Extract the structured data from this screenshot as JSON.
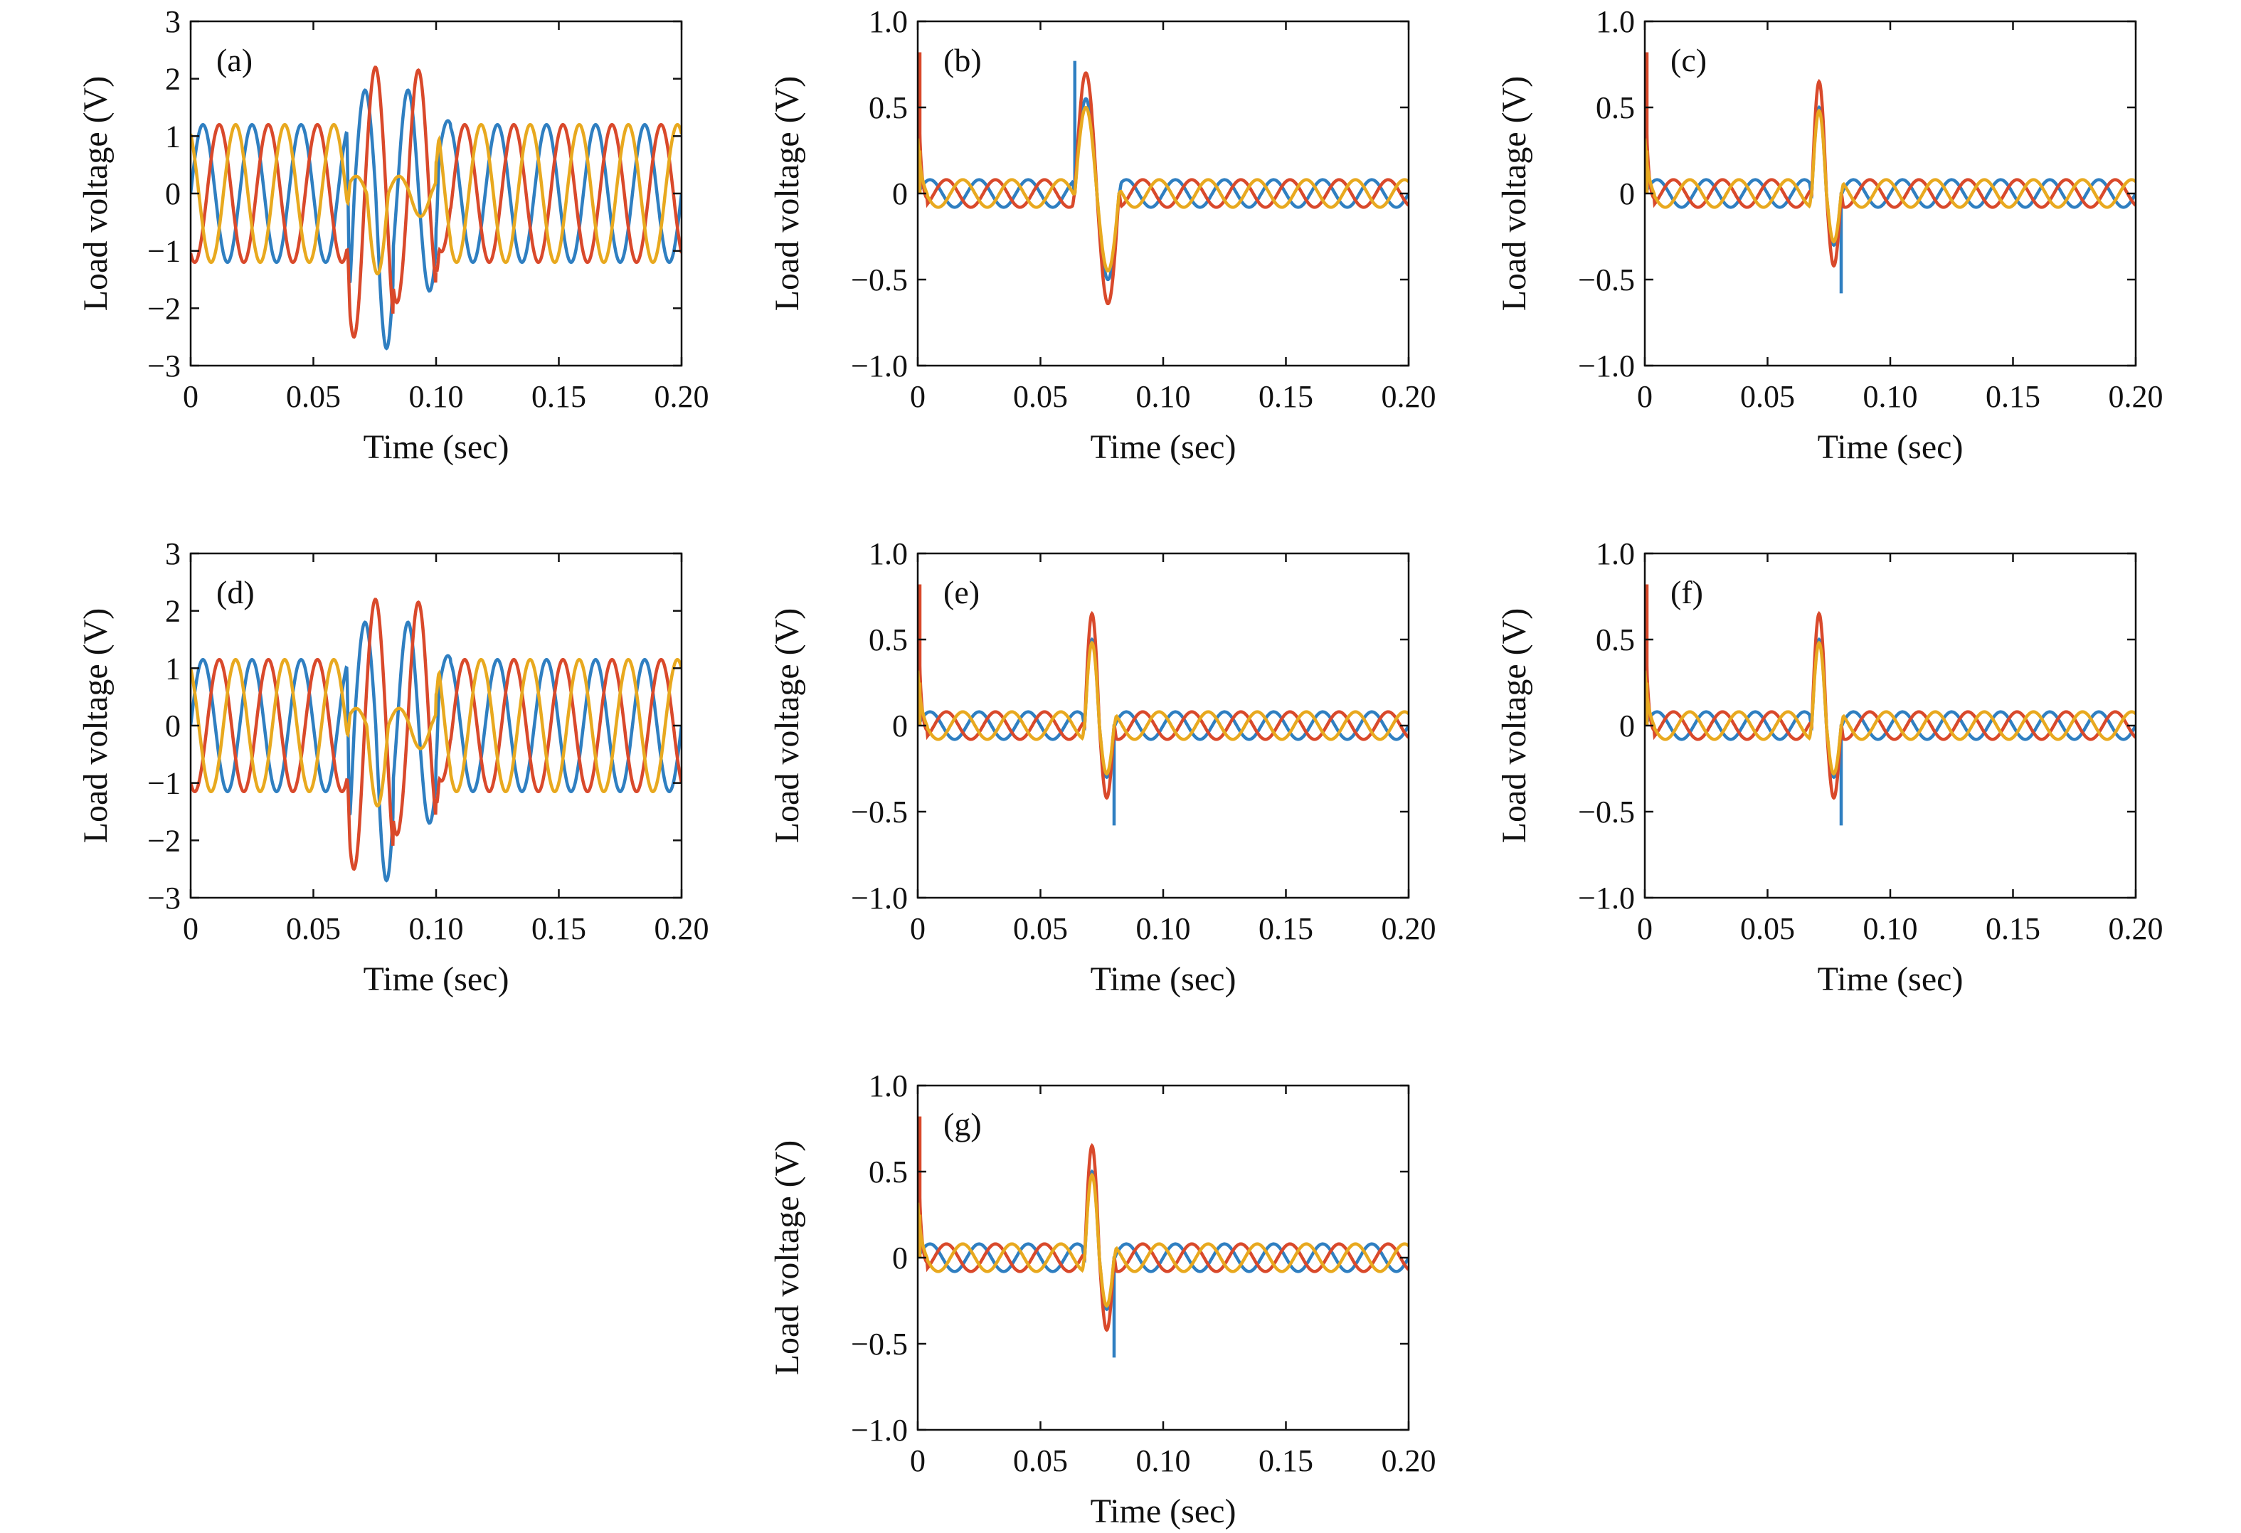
{
  "colors": {
    "phase_a": "#2f7fc1",
    "phase_b": "#d9492b",
    "phase_c": "#e8a91f",
    "axis": "#111111"
  },
  "chart_data": [
    {
      "panel": "(a)",
      "type": "line",
      "xlabel": "Time (sec)",
      "ylabel": "Load voltage (V)",
      "xlim": [
        0,
        0.2
      ],
      "ylim": [
        -3,
        3
      ],
      "xticks": [
        0,
        0.05,
        0.1,
        0.15,
        0.2
      ],
      "xtick_labels": [
        "0",
        "0.05",
        "0.10",
        "0.15",
        "0.20"
      ],
      "yticks": [
        -3,
        -2,
        -1,
        0,
        1,
        2,
        3
      ],
      "ytick_labels": [
        "−3",
        "−2",
        "−1",
        "0",
        "1",
        "2",
        "3"
      ],
      "grid": false,
      "series": [
        {
          "color": "#2f7fc1",
          "phase_deg": 0,
          "frequency_hz": 50,
          "steady_amplitude": 1.2,
          "fault_window": [
            0.065,
            0.1
          ],
          "fault_peaks": [
            1.8,
            1.8
          ],
          "fault_troughs": [
            -2.7,
            -1.7
          ]
        },
        {
          "color": "#d9492b",
          "phase_deg": -120,
          "frequency_hz": 50,
          "steady_amplitude": 1.2,
          "fault_window": [
            0.065,
            0.1
          ],
          "fault_peaks": [
            2.2,
            2.15
          ],
          "fault_troughs": [
            -2.5,
            -1.9
          ]
        },
        {
          "color": "#e8a91f",
          "phase_deg": 120,
          "frequency_hz": 50,
          "steady_amplitude": 1.2,
          "fault_window": [
            0.065,
            0.1
          ],
          "fault_peaks": [
            0.3,
            0.3
          ],
          "fault_troughs": [
            -1.4,
            -0.4
          ]
        }
      ]
    },
    {
      "panel": "(b)",
      "type": "line",
      "xlabel": "Time (sec)",
      "ylabel": "Load voltage (V)",
      "xlim": [
        0,
        0.2
      ],
      "ylim": [
        -1,
        1
      ],
      "xticks": [
        0,
        0.05,
        0.1,
        0.15,
        0.2
      ],
      "xtick_labels": [
        "0",
        "0.05",
        "0.10",
        "0.15",
        "0.20"
      ],
      "yticks": [
        -1,
        -0.5,
        0,
        0.5,
        1
      ],
      "ytick_labels": [
        "−1.0",
        "−0.5",
        "0",
        "0.5",
        "1.0"
      ],
      "grid": false,
      "series": [
        {
          "color": "#2f7fc1",
          "phase_deg": 0,
          "frequency_hz": 50,
          "steady_amplitude": 0.08,
          "fault_window": [
            0.064,
            0.082
          ],
          "fault_peak": 0.55,
          "fault_trough": -0.5,
          "spike": {
            "x": 0.064,
            "y": 0.77
          }
        },
        {
          "color": "#d9492b",
          "phase_deg": -120,
          "frequency_hz": 50,
          "steady_amplitude": 0.08,
          "fault_window": [
            0.064,
            0.082
          ],
          "fault_peak": 0.7,
          "fault_trough": -0.64,
          "spike": {
            "x": 0.0,
            "y": 0.82
          }
        },
        {
          "color": "#e8a91f",
          "phase_deg": 120,
          "frequency_hz": 50,
          "steady_amplitude": 0.08,
          "fault_window": [
            0.064,
            0.082
          ],
          "fault_peak": 0.5,
          "fault_trough": -0.45,
          "spike": {
            "x": 0.0,
            "y": 0.25
          }
        }
      ]
    },
    {
      "panel": "(c)",
      "type": "line",
      "xlabel": "Time (sec)",
      "ylabel": "Load voltage (V)",
      "xlim": [
        0,
        0.2
      ],
      "ylim": [
        -1,
        1
      ],
      "xticks": [
        0,
        0.05,
        0.1,
        0.15,
        0.2
      ],
      "xtick_labels": [
        "0",
        "0.05",
        "0.10",
        "0.15",
        "0.20"
      ],
      "yticks": [
        -1,
        -0.5,
        0,
        0.5,
        1
      ],
      "ytick_labels": [
        "−1.0",
        "−0.5",
        "0",
        "0.5",
        "1.0"
      ],
      "grid": false,
      "series": [
        {
          "color": "#2f7fc1",
          "phase_deg": 0,
          "frequency_hz": 50,
          "steady_amplitude": 0.08,
          "fault_window": [
            0.068,
            0.08
          ],
          "fault_peak": 0.5,
          "fault_trough": -0.3,
          "spike": {
            "x": 0.08,
            "y": -0.58
          }
        },
        {
          "color": "#d9492b",
          "phase_deg": -120,
          "frequency_hz": 50,
          "steady_amplitude": 0.08,
          "fault_window": [
            0.068,
            0.08
          ],
          "fault_peak": 0.65,
          "fault_trough": -0.42,
          "spike": {
            "x": 0.0,
            "y": 0.82
          }
        },
        {
          "color": "#e8a91f",
          "phase_deg": 120,
          "frequency_hz": 50,
          "steady_amplitude": 0.08,
          "fault_window": [
            0.068,
            0.08
          ],
          "fault_peak": 0.48,
          "fault_trough": -0.28,
          "spike": {
            "x": 0.0,
            "y": 0.25
          }
        }
      ]
    },
    {
      "panel": "(d)",
      "type": "line",
      "xlabel": "Time (sec)",
      "ylabel": "Load voltage (V)",
      "xlim": [
        0,
        0.2
      ],
      "ylim": [
        -3,
        3
      ],
      "xticks": [
        0,
        0.05,
        0.1,
        0.15,
        0.2
      ],
      "xtick_labels": [
        "0",
        "0.05",
        "0.10",
        "0.15",
        "0.20"
      ],
      "yticks": [
        -3,
        -2,
        -1,
        0,
        1,
        2,
        3
      ],
      "ytick_labels": [
        "−3",
        "−2",
        "−1",
        "0",
        "1",
        "2",
        "3"
      ],
      "grid": false,
      "series": [
        {
          "color": "#2f7fc1",
          "phase_deg": 0,
          "frequency_hz": 50,
          "steady_amplitude": 1.15,
          "fault_window": [
            0.065,
            0.1
          ],
          "fault_peaks": [
            1.8,
            1.8
          ],
          "fault_troughs": [
            -2.7,
            -1.7
          ]
        },
        {
          "color": "#d9492b",
          "phase_deg": -120,
          "frequency_hz": 50,
          "steady_amplitude": 1.15,
          "fault_window": [
            0.065,
            0.1
          ],
          "fault_peaks": [
            2.2,
            2.15
          ],
          "fault_troughs": [
            -2.5,
            -1.9
          ]
        },
        {
          "color": "#e8a91f",
          "phase_deg": 120,
          "frequency_hz": 50,
          "steady_amplitude": 1.15,
          "fault_window": [
            0.065,
            0.1
          ],
          "fault_peaks": [
            0.3,
            0.3
          ],
          "fault_troughs": [
            -1.4,
            -0.4
          ]
        }
      ]
    },
    {
      "panel": "(e)",
      "type": "line",
      "xlabel": "Time (sec)",
      "ylabel": "Load voltage (V)",
      "xlim": [
        0,
        0.2
      ],
      "ylim": [
        -1,
        1
      ],
      "xticks": [
        0,
        0.05,
        0.1,
        0.15,
        0.2
      ],
      "xtick_labels": [
        "0",
        "0.05",
        "0.10",
        "0.15",
        "0.20"
      ],
      "yticks": [
        -1,
        -0.5,
        0,
        0.5,
        1
      ],
      "ytick_labels": [
        "−1.0",
        "−0.5",
        "0",
        "0.5",
        "1.0"
      ],
      "grid": false,
      "series": [
        {
          "color": "#2f7fc1",
          "phase_deg": 0,
          "frequency_hz": 50,
          "steady_amplitude": 0.08,
          "fault_window": [
            0.068,
            0.08
          ],
          "fault_peak": 0.5,
          "fault_trough": -0.3,
          "spike": {
            "x": 0.08,
            "y": -0.58
          }
        },
        {
          "color": "#d9492b",
          "phase_deg": -120,
          "frequency_hz": 50,
          "steady_amplitude": 0.08,
          "fault_window": [
            0.068,
            0.08
          ],
          "fault_peak": 0.65,
          "fault_trough": -0.42,
          "spike": {
            "x": 0.0,
            "y": 0.82
          }
        },
        {
          "color": "#e8a91f",
          "phase_deg": 120,
          "frequency_hz": 50,
          "steady_amplitude": 0.08,
          "fault_window": [
            0.068,
            0.08
          ],
          "fault_peak": 0.48,
          "fault_trough": -0.28,
          "spike": {
            "x": 0.0,
            "y": 0.25
          }
        }
      ]
    },
    {
      "panel": "(f)",
      "type": "line",
      "xlabel": "Time (sec)",
      "ylabel": "Load voltage (V)",
      "xlim": [
        0,
        0.2
      ],
      "ylim": [
        -1,
        1
      ],
      "xticks": [
        0,
        0.05,
        0.1,
        0.15,
        0.2
      ],
      "xtick_labels": [
        "0",
        "0.05",
        "0.10",
        "0.15",
        "0.20"
      ],
      "yticks": [
        -1,
        -0.5,
        0,
        0.5,
        1
      ],
      "ytick_labels": [
        "−1.0",
        "−0.5",
        "0",
        "0.5",
        "1.0"
      ],
      "grid": false,
      "series": [
        {
          "color": "#2f7fc1",
          "phase_deg": 0,
          "frequency_hz": 50,
          "steady_amplitude": 0.08,
          "fault_window": [
            0.068,
            0.08
          ],
          "fault_peak": 0.5,
          "fault_trough": -0.3,
          "spike": {
            "x": 0.08,
            "y": -0.58
          }
        },
        {
          "color": "#d9492b",
          "phase_deg": -120,
          "frequency_hz": 50,
          "steady_amplitude": 0.08,
          "fault_window": [
            0.068,
            0.08
          ],
          "fault_peak": 0.65,
          "fault_trough": -0.42,
          "spike": {
            "x": 0.0,
            "y": 0.82
          }
        },
        {
          "color": "#e8a91f",
          "phase_deg": 120,
          "frequency_hz": 50,
          "steady_amplitude": 0.08,
          "fault_window": [
            0.068,
            0.08
          ],
          "fault_peak": 0.48,
          "fault_trough": -0.28,
          "spike": {
            "x": 0.0,
            "y": 0.25
          }
        }
      ]
    },
    {
      "panel": "(g)",
      "type": "line",
      "xlabel": "Time (sec)",
      "ylabel": "Load voltage (V)",
      "xlim": [
        0,
        0.2
      ],
      "ylim": [
        -1,
        1
      ],
      "xticks": [
        0,
        0.05,
        0.1,
        0.15,
        0.2
      ],
      "xtick_labels": [
        "0",
        "0.05",
        "0.10",
        "0.15",
        "0.20"
      ],
      "yticks": [
        -1,
        -0.5,
        0,
        0.5,
        1
      ],
      "ytick_labels": [
        "−1.0",
        "−0.5",
        "0",
        "0.5",
        "1.0"
      ],
      "grid": false,
      "series": [
        {
          "color": "#2f7fc1",
          "phase_deg": 0,
          "frequency_hz": 50,
          "steady_amplitude": 0.08,
          "fault_window": [
            0.068,
            0.08
          ],
          "fault_peak": 0.5,
          "fault_trough": -0.3,
          "spike": {
            "x": 0.08,
            "y": -0.58
          }
        },
        {
          "color": "#d9492b",
          "phase_deg": -120,
          "frequency_hz": 50,
          "steady_amplitude": 0.08,
          "fault_window": [
            0.068,
            0.08
          ],
          "fault_peak": 0.65,
          "fault_trough": -0.42,
          "spike": {
            "x": 0.0,
            "y": 0.82
          }
        },
        {
          "color": "#e8a91f",
          "phase_deg": 120,
          "frequency_hz": 50,
          "steady_amplitude": 0.08,
          "fault_window": [
            0.068,
            0.08
          ],
          "fault_peak": 0.48,
          "fault_trough": -0.28,
          "spike": {
            "x": 0.0,
            "y": 0.25
          }
        }
      ]
    }
  ]
}
